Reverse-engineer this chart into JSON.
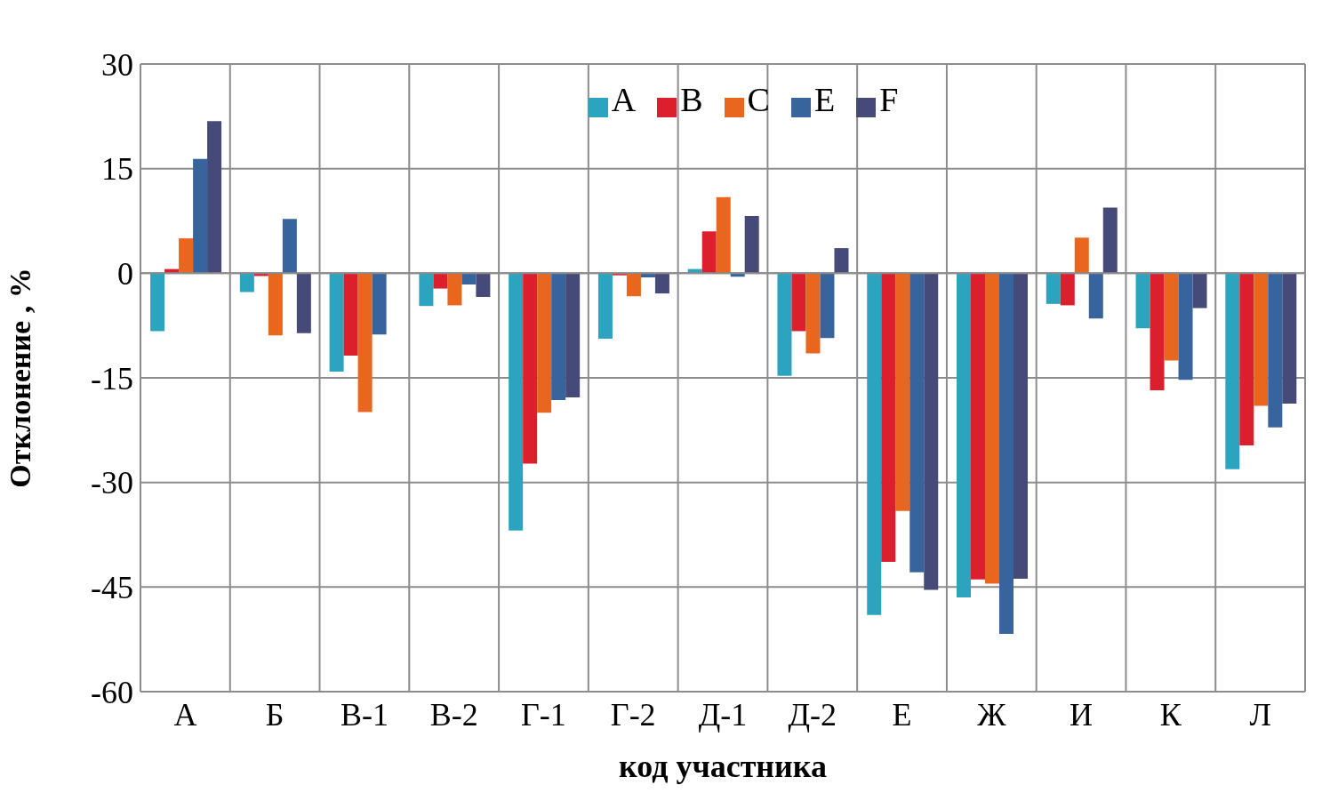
{
  "chart_data": {
    "type": "bar",
    "ylabel": "Отклонение , %",
    "xlabel": "код участника",
    "categories": [
      "А",
      "Б",
      "В-1",
      "В-2",
      "Г-1",
      "Г-2",
      "Д-1",
      "Д-2",
      "Е",
      "Ж",
      "И",
      "К",
      "Л"
    ],
    "series": [
      {
        "name": "A",
        "color": "#2ca3bf",
        "values": [
          -8.3,
          -2.7,
          -14.1,
          -4.7,
          -36.9,
          -9.4,
          0.6,
          -14.7,
          -49.0,
          -46.5,
          -4.4,
          -7.9,
          -28.1
        ]
      },
      {
        "name": "B",
        "color": "#dc1f2c",
        "values": [
          0.6,
          -0.4,
          -11.8,
          -2.2,
          -27.3,
          -0.3,
          6.0,
          -8.3,
          -41.4,
          -43.9,
          -4.6,
          -16.8,
          -24.7
        ]
      },
      {
        "name": "C",
        "color": "#e9661e",
        "values": [
          5.0,
          -8.9,
          -19.9,
          -4.6,
          -20.0,
          -3.3,
          10.9,
          -11.5,
          -34.1,
          -44.5,
          5.1,
          -12.5,
          -19.0
        ]
      },
      {
        "name": "E",
        "color": "#38649e",
        "values": [
          16.4,
          7.8,
          -8.8,
          -1.6,
          -18.2,
          -0.6,
          -0.5,
          -9.3,
          -42.9,
          -51.7,
          -6.5,
          -15.3,
          -22.1
        ]
      },
      {
        "name": "F",
        "color": "#464a78",
        "values": [
          21.8,
          -8.6,
          null,
          -3.4,
          -17.8,
          -2.9,
          8.2,
          3.6,
          -45.4,
          -43.8,
          9.4,
          -5.0,
          -18.7
        ]
      }
    ],
    "ylim": [
      -60,
      30
    ],
    "yticks": [
      -60,
      -45,
      -30,
      -15,
      0,
      15,
      30
    ],
    "grid": true,
    "legend": "top"
  }
}
